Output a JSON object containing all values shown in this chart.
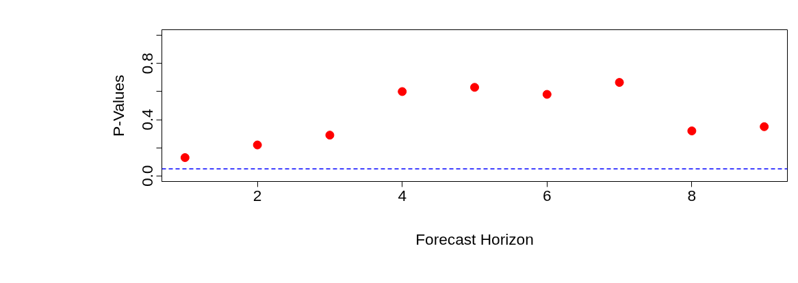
{
  "chart_data": {
    "type": "scatter",
    "xlabel": "Forecast Horizon",
    "ylabel": "P-Values",
    "x": [
      1,
      2,
      3,
      4,
      5,
      6,
      7,
      8,
      9
    ],
    "series": [
      {
        "color": "#ff0000",
        "values": [
          0.13,
          0.22,
          0.29,
          0.6,
          0.63,
          0.58,
          0.665,
          0.32,
          0.35
        ]
      }
    ],
    "xlim": [
      0.68,
      9.32
    ],
    "ylim": [
      -0.04,
      1.04
    ],
    "xticks": [
      2,
      4,
      6,
      8
    ],
    "yticks": [
      {
        "value": 0,
        "label": "0.0"
      },
      {
        "value": 0.2,
        "label": null
      },
      {
        "value": 0.4,
        "label": "0.4"
      },
      {
        "value": 0.6,
        "label": null
      },
      {
        "value": 0.8,
        "label": "0.8"
      },
      {
        "value": 1.0,
        "label": null
      }
    ],
    "ref_lines": [
      {
        "axis": "y",
        "value": 0.05,
        "color": "#0000ff",
        "line_style": "dashed"
      }
    ],
    "marker": "circle",
    "grid": false
  }
}
